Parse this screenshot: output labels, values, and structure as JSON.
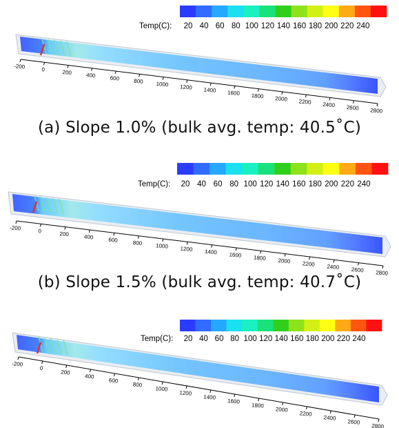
{
  "legend": {
    "label": "Temp(C):",
    "values": [
      "20",
      "40",
      "60",
      "80",
      "100",
      "120",
      "140",
      "160",
      "180",
      "200",
      "220",
      "240"
    ],
    "colors": [
      "#2a3cff",
      "#2f6cff",
      "#25a8ff",
      "#1ae0f0",
      "#1af0c0",
      "#19e27a",
      "#31cf1d",
      "#8ee21a",
      "#d4ef14",
      "#ffff14",
      "#ffaa14",
      "#ff5511",
      "#ff1111"
    ]
  },
  "axis_ticks": [
    "-200",
    "0",
    "200",
    "400",
    "600",
    "800",
    "1000",
    "1200",
    "1400",
    "1600",
    "1800",
    "2000",
    "2200",
    "2400",
    "2600",
    "2800"
  ],
  "panels": [
    {
      "caption": "(a) Slope 1.0% (bulk avg. temp: 40.5˚C)"
    },
    {
      "caption": "(b) Slope 1.5% (bulk avg. temp: 40.7˚C)"
    },
    {
      "caption": ""
    }
  ]
}
